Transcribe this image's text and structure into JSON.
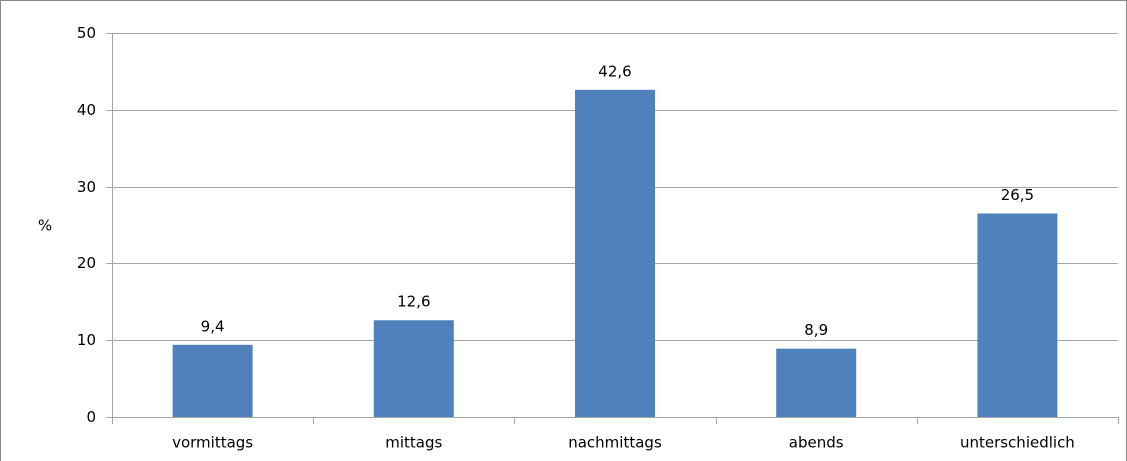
{
  "chart_data": {
    "type": "bar",
    "y_label": "%",
    "categories": [
      "vormittags",
      "mittags",
      "nachmittags",
      "abends",
      "unterschiedlich"
    ],
    "values": [
      9.4,
      12.6,
      42.6,
      8.9,
      26.5
    ],
    "value_labels": [
      "9,4",
      "12,6",
      "42,6",
      "8,9",
      "26,5"
    ],
    "color": "#4f81bd",
    "ylim": [
      0,
      50
    ],
    "yticks": [
      0,
      10,
      20,
      30,
      40,
      50
    ],
    "grid": true
  }
}
